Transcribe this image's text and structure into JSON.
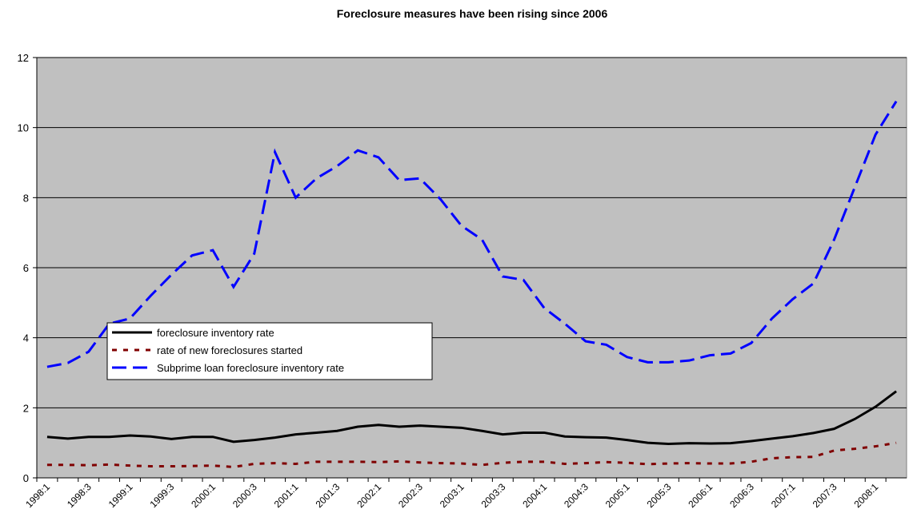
{
  "chart_data": {
    "type": "line",
    "title": "Foreclosure measures have been rising since 2006",
    "categories": [
      "1998:1",
      null,
      "1998:3",
      null,
      "1999:1",
      null,
      "1999:3",
      null,
      "2000:1",
      null,
      "2000:3",
      null,
      "2001:1",
      null,
      "2001:3",
      null,
      "2002:1",
      null,
      "2002:3",
      null,
      "2003:1",
      null,
      "2003:3",
      null,
      "2004:1",
      null,
      "2004:3",
      null,
      "2005:1",
      null,
      "2005:3",
      null,
      "2006:1",
      null,
      "2006:3",
      null,
      "2007:1",
      null,
      "2007:3",
      null,
      "2008:1",
      null
    ],
    "series": [
      {
        "name": "foreclosure inventory rate",
        "color": "#000000",
        "dash": "solid",
        "values": [
          1.17,
          1.12,
          1.17,
          1.17,
          1.21,
          1.18,
          1.11,
          1.17,
          1.17,
          1.03,
          1.08,
          1.15,
          1.24,
          1.29,
          1.34,
          1.46,
          1.51,
          1.46,
          1.49,
          1.46,
          1.43,
          1.34,
          1.24,
          1.29,
          1.29,
          1.18,
          1.16,
          1.15,
          1.08,
          1.0,
          0.97,
          0.99,
          0.98,
          0.99,
          1.05,
          1.12,
          1.19,
          1.28,
          1.4,
          1.68,
          2.03,
          2.47
        ]
      },
      {
        "name": "rate of new foreclosures started",
        "color": "#800000",
        "dash": "dot",
        "values": [
          0.37,
          0.37,
          0.36,
          0.38,
          0.35,
          0.33,
          0.33,
          0.34,
          0.35,
          0.31,
          0.4,
          0.42,
          0.4,
          0.46,
          0.46,
          0.46,
          0.45,
          0.47,
          0.44,
          0.42,
          0.41,
          0.37,
          0.43,
          0.46,
          0.46,
          0.4,
          0.42,
          0.45,
          0.43,
          0.39,
          0.41,
          0.42,
          0.41,
          0.41,
          0.46,
          0.56,
          0.59,
          0.6,
          0.78,
          0.83,
          0.9,
          1.0
        ]
      },
      {
        "name": "Subprime loan foreclosure inventory rate",
        "color": "#0000ff",
        "dash": "dash",
        "values": [
          3.17,
          3.28,
          3.6,
          4.4,
          4.55,
          5.2,
          5.8,
          6.35,
          6.5,
          5.45,
          6.4,
          9.3,
          8.0,
          8.55,
          8.9,
          9.35,
          9.15,
          8.5,
          8.55,
          7.95,
          7.2,
          6.8,
          5.75,
          5.65,
          4.85,
          4.4,
          3.9,
          3.8,
          3.45,
          3.3,
          3.3,
          3.35,
          3.5,
          3.55,
          3.85,
          4.55,
          5.1,
          5.55,
          6.8,
          8.3,
          9.8,
          10.75
        ]
      }
    ],
    "ylim": [
      0,
      12
    ],
    "yticks": [
      0,
      2,
      4,
      6,
      8,
      10,
      12
    ],
    "grid": true,
    "plot_background": "#c0c0c0"
  }
}
